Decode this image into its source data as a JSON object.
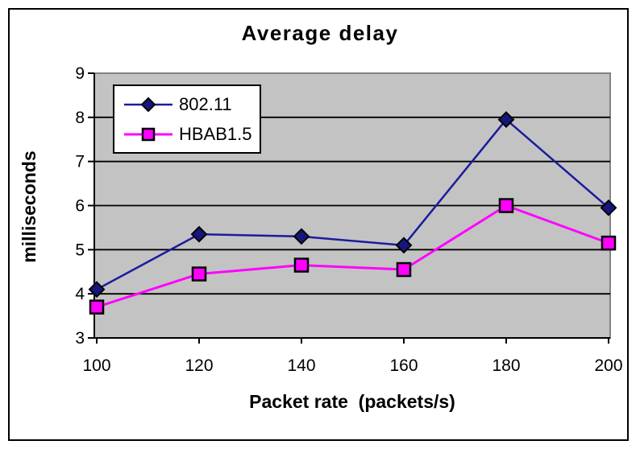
{
  "chart_data": {
    "type": "line",
    "title": "Average delay",
    "xlabel": "Packet rate  (packets/s)",
    "ylabel": "milliseconds",
    "categories": [
      "100",
      "120",
      "140",
      "160",
      "180",
      "200"
    ],
    "x": [
      100,
      120,
      140,
      160,
      180,
      200
    ],
    "y_ticks": [
      3,
      4,
      5,
      6,
      7,
      8,
      9
    ],
    "ylim": [
      3,
      9
    ],
    "xlim": [
      100,
      200
    ],
    "grid": true,
    "legend_position": "inside-top-left",
    "plot_bg_color": "#c3c3c3",
    "plot_border_color": "#828282",
    "gridline_color": "#000000",
    "axis_color": "#000000",
    "series": [
      {
        "name": "802.11",
        "marker": "diamond",
        "line_color": "#1b1b9e",
        "marker_color": "#16167d",
        "values": [
          4.1,
          5.35,
          5.3,
          5.1,
          7.95,
          5.95
        ]
      },
      {
        "name": "HBAB1.5",
        "marker": "square",
        "line_color": "#ff00ff",
        "marker_color": "#ff00ff",
        "values": [
          3.7,
          4.45,
          4.65,
          4.55,
          6.0,
          5.15
        ]
      }
    ]
  }
}
